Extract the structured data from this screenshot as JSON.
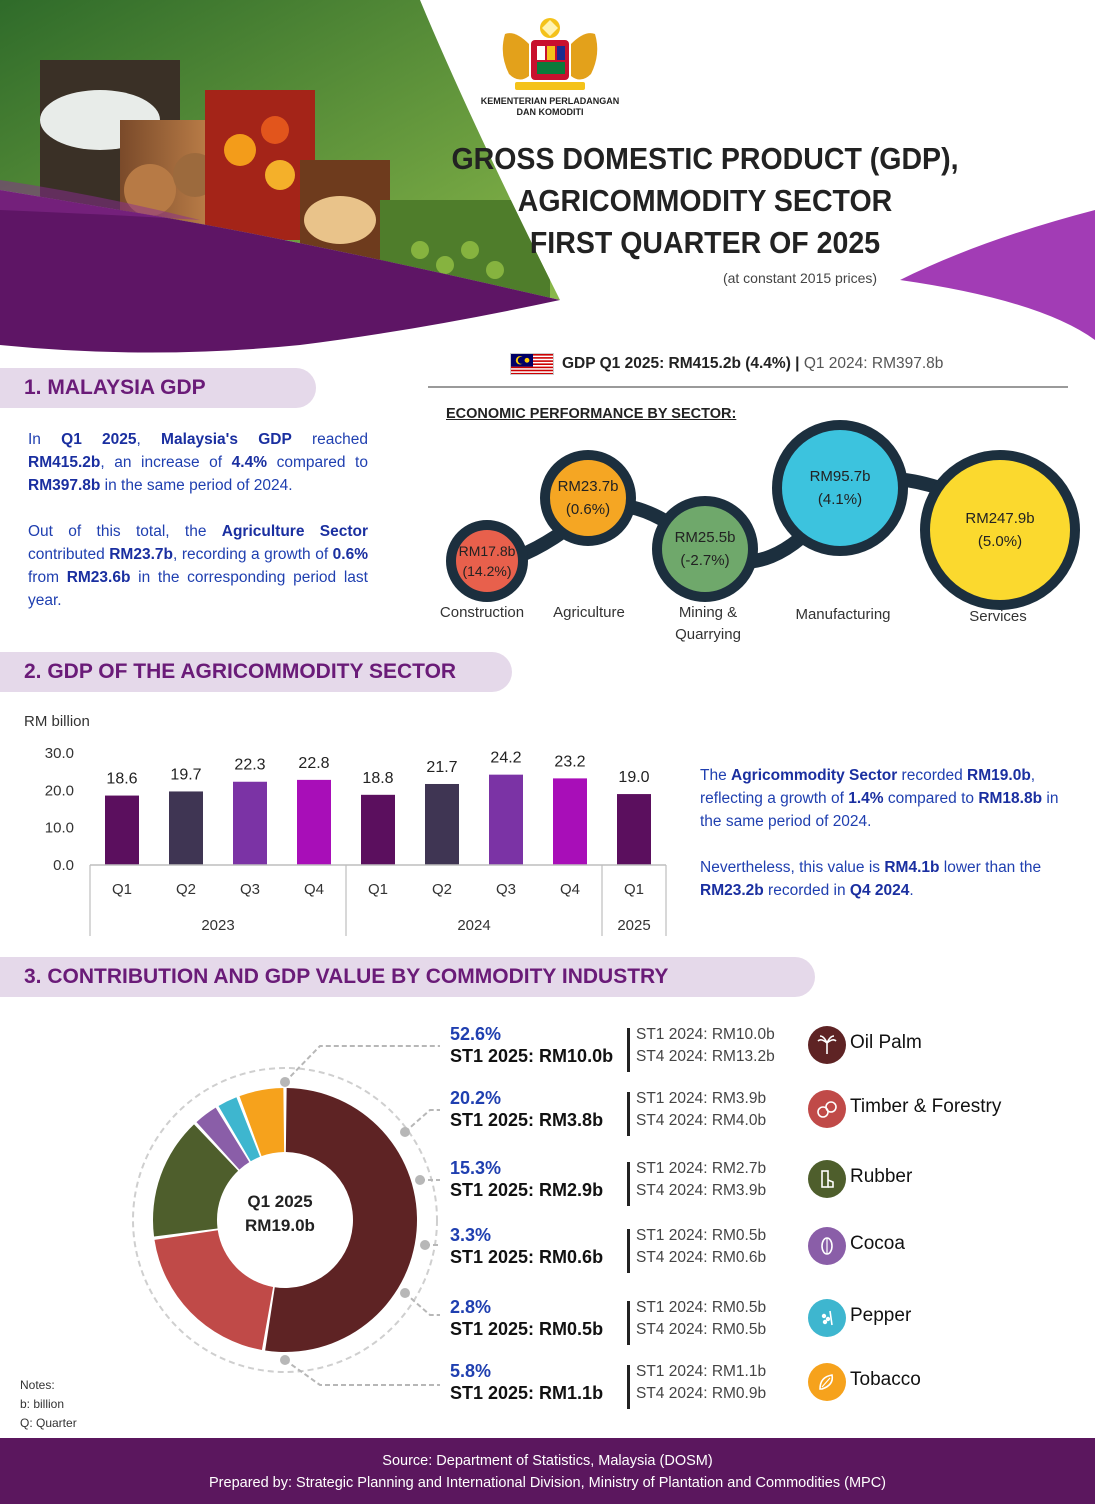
{
  "header": {
    "ministry_line1": "KEMENTERIAN PERLADANGAN",
    "ministry_line2": "DAN KOMODITI",
    "title_line1": "GROSS DOMESTIC PRODUCT (GDP),",
    "title_line2": "AGRICOMMODITY SECTOR",
    "title_line3": "FIRST QUARTER OF 2025",
    "subtitle": "(at constant 2015 prices)"
  },
  "section1": {
    "heading": "1. MALAYSIA GDP",
    "p1_a": "In ",
    "p1_b": "Q1 2025",
    "p1_c": ", ",
    "p1_d": "Malaysia's GDP",
    "p1_e": " reached ",
    "p1_f": "RM415.2b",
    "p1_g": ", an increase of ",
    "p1_h": "4.4%",
    "p1_i": " compared to ",
    "p1_j": "RM397.8b",
    "p1_k": " in the same period of 2024.",
    "p2_a": "Out of this total, the ",
    "p2_b": "Agriculture Sector",
    "p2_c": " contributed ",
    "p2_d": "RM23.7b",
    "p2_e": ", recording a growth of ",
    "p2_f": "0.6%",
    "p2_g": " from ",
    "p2_h": "RM23.6b",
    "p2_i": " in the corresponding period last year.",
    "gdp_strong": "GDP Q1 2025: RM415.2b (4.4%)",
    "gdp_sep": " | ",
    "gdp_light": "Q1 2024: RM397.8b",
    "econ_title": "ECONOMIC PERFORMANCE BY SECTOR:",
    "sectors": [
      {
        "name": "Construction",
        "value": "RM17.8b",
        "growth": "(14.2%)",
        "color": "#e8604c"
      },
      {
        "name": "Agriculture",
        "value": "RM23.7b",
        "growth": "(0.6%)",
        "color": "#f5a623"
      },
      {
        "name": "Mining & Quarrying",
        "value": "RM25.5b",
        "growth": "(-2.7%)",
        "color": "#6fa86b"
      },
      {
        "name": "Manufacturing",
        "value": "RM95.7b",
        "growth": "(4.1%)",
        "color": "#3cc3de"
      },
      {
        "name": "Services",
        "value": "RM247.9b",
        "growth": "(5.0%)",
        "color": "#fbd92e"
      }
    ]
  },
  "section2": {
    "heading": "2. GDP OF THE AGRICOMMODITY SECTOR",
    "note_p1_a": "The ",
    "note_p1_b": "Agricommodity Sector",
    "note_p1_c": " recorded ",
    "note_p1_d": "RM19.0b",
    "note_p1_e": ", reflecting a growth of ",
    "note_p1_f": "1.4%",
    "note_p1_g": " compared to ",
    "note_p1_h": "RM18.8b",
    "note_p1_i": " in the same period of 2024.",
    "note_p2_a": "Nevertheless, this value is ",
    "note_p2_b": "RM4.1b",
    "note_p2_c": " lower than the ",
    "note_p2_d": "RM23.2b",
    "note_p2_e": " recorded in ",
    "note_p2_f": "Q4 2024",
    "note_p2_g": "."
  },
  "chart_data": {
    "type": "bar",
    "ylabel": "RM billion",
    "ylim": [
      0,
      30
    ],
    "yticks": [
      "0.0",
      "10.0",
      "20.0",
      "30.0"
    ],
    "categories": [
      "Q1",
      "Q2",
      "Q3",
      "Q4",
      "Q1",
      "Q2",
      "Q3",
      "Q4",
      "Q1"
    ],
    "years": [
      {
        "label": "2023",
        "count": 4
      },
      {
        "label": "2024",
        "count": 4
      },
      {
        "label": "2025",
        "count": 1
      }
    ],
    "values": [
      18.6,
      19.7,
      22.3,
      22.8,
      18.8,
      21.7,
      24.2,
      23.2,
      19.0
    ],
    "value_labels": [
      "18.6",
      "19.7",
      "22.3",
      "22.8",
      "18.8",
      "21.7",
      "24.2",
      "23.2",
      "19.0"
    ],
    "colors": [
      "#5b0f5e",
      "#3f3553",
      "#7b33a5",
      "#a80eb8",
      "#5b0f5e",
      "#3f3553",
      "#7b33a5",
      "#a80eb8",
      "#5b0f5e"
    ]
  },
  "section3": {
    "heading": "3. CONTRIBUTION AND GDP VALUE BY COMMODITY INDUSTRY",
    "center_line1": "Q1 2025",
    "center_line2": "RM19.0b",
    "industries": [
      {
        "name": "Oil Palm",
        "share": "52.6%",
        "share_value": 52.6,
        "value": "ST1 2025: RM10.0b",
        "prev1": "ST1 2024: RM10.0b",
        "prev2": "ST4 2024: RM13.2b",
        "color": "#5e2324",
        "icon": "oil-palm-icon"
      },
      {
        "name": "Timber & Forestry",
        "share": "20.2%",
        "share_value": 20.2,
        "value": "ST1 2025: RM3.8b",
        "prev1": "ST1 2024: RM3.9b",
        "prev2": "ST4 2024: RM4.0b",
        "color": "#c04a48",
        "icon": "timber-icon"
      },
      {
        "name": "Rubber",
        "share": "15.3%",
        "share_value": 15.3,
        "value": "ST1 2025: RM2.9b",
        "prev1": "ST1 2024: RM2.7b",
        "prev2": "ST4 2024: RM3.9b",
        "color": "#4e5e2c",
        "icon": "rubber-icon"
      },
      {
        "name": "Cocoa",
        "share": "3.3%",
        "share_value": 3.3,
        "value": "ST1 2025: RM0.6b",
        "prev1": "ST1 2024: RM0.5b",
        "prev2": "ST4 2024: RM0.6b",
        "color": "#8a5ea8",
        "icon": "cocoa-icon"
      },
      {
        "name": "Pepper",
        "share": "2.8%",
        "share_value": 2.8,
        "value": "ST1 2025: RM0.5b",
        "prev1": "ST1 2024: RM0.5b",
        "prev2": "ST4 2024: RM0.5b",
        "color": "#3eb6cf",
        "icon": "pepper-icon"
      },
      {
        "name": "Tobacco",
        "share": "5.8%",
        "share_value": 5.8,
        "value": "ST1 2025: RM1.1b",
        "prev1": "ST1 2024: RM1.1b",
        "prev2": "ST4 2024: RM0.9b",
        "color": "#f6a21c",
        "icon": "tobacco-icon"
      }
    ]
  },
  "notes": {
    "line1": "Notes:",
    "line2": "b: billion",
    "line3": "Q: Quarter"
  },
  "footer": {
    "line1": "Source: Department of Statistics, Malaysia (DOSM)",
    "line2": "Prepared by: Strategic Planning and International Division, Ministry of Plantation and Commodities (MPC)"
  }
}
